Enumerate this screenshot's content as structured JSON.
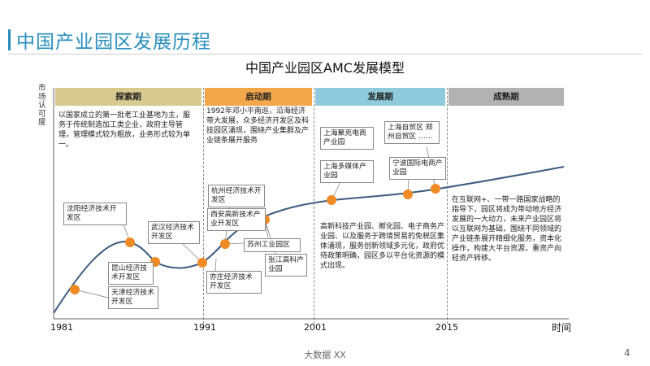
{
  "page_title": "中国产业园区发展历程",
  "model_title": "中国产业园区AMC发展模型",
  "y_axis_label": "市场认可度",
  "x_axis_label": "时间",
  "phases": [
    {
      "name": "探索期",
      "description": "以国家成立的第一批老工业基地为主，服务于传统制造加工类企业，政府主导管理，管理模式较为粗放，业务形式较为单一。"
    },
    {
      "name": "启动期",
      "description": "1992年邓小平南巡，沿海经济带大发展，众多经济开发区及科技园区涌现，围绕产业集群及产业链条展开服务"
    },
    {
      "name": "发展期",
      "description": "高新科技产业园、孵化园、电子商务产业园、以及服务于跨境贸易的免税区集体涌现，服务创新领域多元化，政府优待政策明确，园区多以平台化资源的模式出现。"
    },
    {
      "name": "成熟期",
      "description": "在互联网+、一带一路国家战略的指导下，园区将成为带动地方经济发展的一大动力，未来产业园区将以互联网为基础，围绕不同领域的产业链条展开精细化服务，资本化操作，构建大平台资源，重资产向轻资产转移。"
    }
  ],
  "years": [
    "1981",
    "1991",
    "2001",
    "2015"
  ],
  "park_labels": [
    "沈阳经济技术开发区",
    "武汉经济技术开发区",
    "昆山经济技术开发区",
    "天津经济技术开发区",
    "杭州经济技术开发区",
    "西安高新技术产业开发区",
    "苏州工业园区",
    "张江高科产业园",
    "亦庄经济技术开发区",
    "上海多媒体产业园",
    "上海聚克电商产业园",
    "上海自贸区 郑州自贸区 ……",
    "宁波国际电商产业园"
  ],
  "footer_text": "大数据  XX",
  "page_number": "4",
  "colors": {
    "accent": "#2a8fbf",
    "curve": "#3d5a80",
    "marker": "#f08a24"
  }
}
